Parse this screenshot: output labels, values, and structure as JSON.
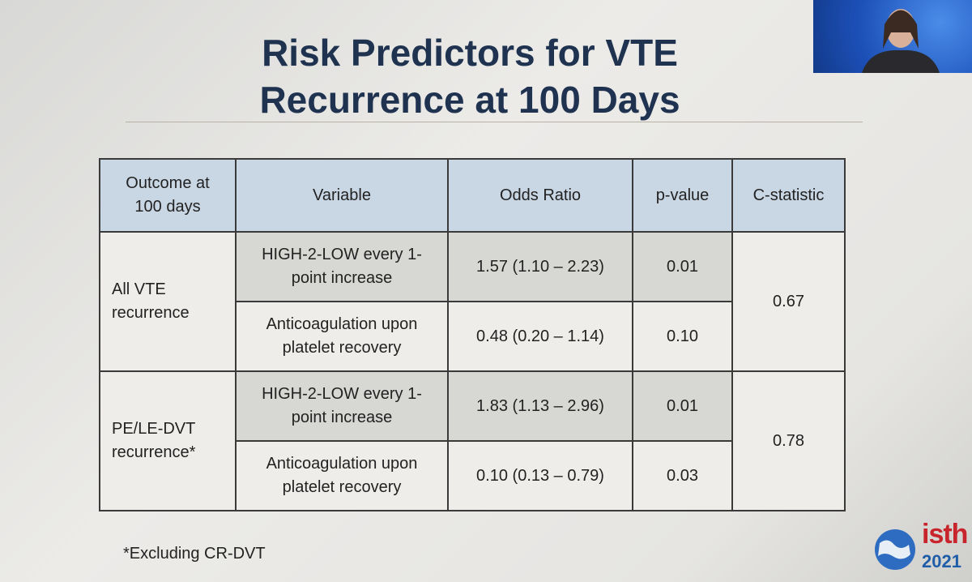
{
  "slide": {
    "title": [
      "Risk Predictors for VTE",
      "Recurrence at 100 Days"
    ],
    "table": {
      "header": [
        "Outcome at 100 days",
        "Variable",
        "Odds Ratio",
        "p-value",
        "C-statistic"
      ],
      "groups": [
        {
          "outcome": "All VTE recurrence",
          "c_statistic": "0.67",
          "rows": [
            [
              "HIGH-2-LOW every 1-point increase",
              "1.57 (1.10 – 2.23)",
              "0.01"
            ],
            [
              "Anticoagulation upon platelet recovery",
              "0.48 (0.20 – 1.14)",
              "0.10"
            ]
          ]
        },
        {
          "outcome": "PE/LE-DVT recurrence*",
          "c_statistic": "0.78",
          "rows": [
            [
              "HIGH-2-LOW every 1-point increase",
              "1.83 (1.13 – 2.96)",
              "0.01"
            ],
            [
              "Anticoagulation upon platelet recovery",
              "0.10 (0.13 – 0.79)",
              "0.03"
            ]
          ]
        }
      ]
    },
    "footnote": "*Excluding CR-DVT",
    "logo": {
      "name": "isth",
      "year": "2021"
    }
  }
}
